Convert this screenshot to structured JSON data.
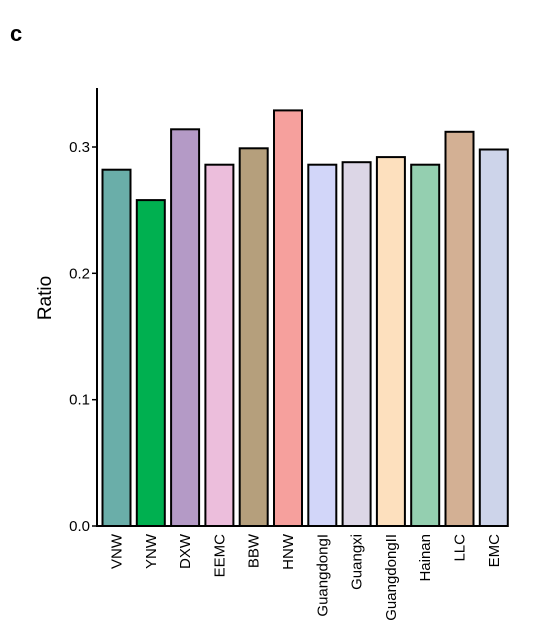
{
  "panel_label": "c",
  "chart_data": {
    "type": "bar",
    "title": "",
    "xlabel": "",
    "ylabel": "Ratio",
    "ylim": [
      0,
      0.34
    ],
    "yticks": [
      0.0,
      0.1,
      0.2,
      0.3
    ],
    "ytick_labels": [
      "0.0",
      "0.1",
      "0.2",
      "0.3"
    ],
    "grid": false,
    "categories": [
      "VNW",
      "YNW",
      "DXW",
      "EEMC",
      "BBW",
      "HNW",
      "GuangdongI",
      "Guangxi",
      "GuangdongII",
      "Hainan",
      "LLC",
      "EMC"
    ],
    "values": [
      0.282,
      0.258,
      0.314,
      0.286,
      0.299,
      0.329,
      0.286,
      0.288,
      0.292,
      0.286,
      0.312,
      0.298
    ],
    "colors": [
      "#6aaea9",
      "#00b050",
      "#b49ac6",
      "#ecbedc",
      "#b59f7c",
      "#f6a09d",
      "#d2d6f9",
      "#dcd6e6",
      "#fde0be",
      "#94cfb0",
      "#d3b094",
      "#cdd4ea"
    ]
  }
}
